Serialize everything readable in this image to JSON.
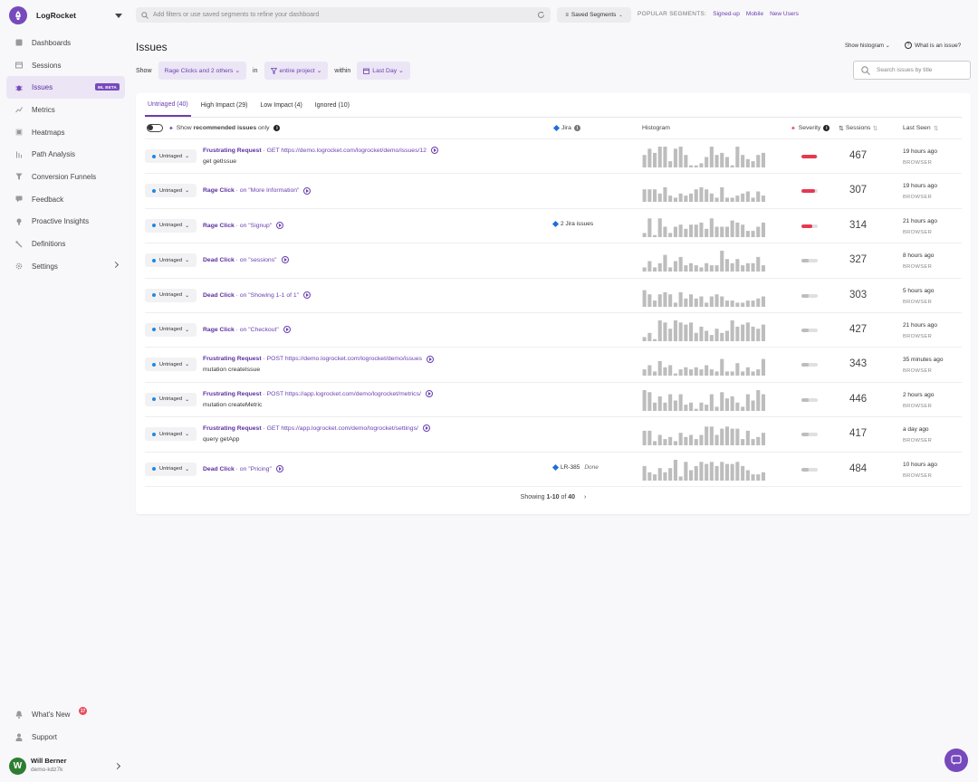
{
  "app": {
    "name": "LogRocket"
  },
  "sidebar": {
    "items": [
      {
        "label": "Dashboards",
        "icon": "dashboard-icon"
      },
      {
        "label": "Sessions",
        "icon": "sessions-icon"
      },
      {
        "label": "Issues",
        "icon": "bug-icon",
        "badge": "ML BETA"
      },
      {
        "label": "Metrics",
        "icon": "metrics-icon"
      },
      {
        "label": "Heatmaps",
        "icon": "heatmap-icon"
      },
      {
        "label": "Path Analysis",
        "icon": "path-analysis-icon"
      },
      {
        "label": "Conversion Funnels",
        "icon": "funnel-icon"
      },
      {
        "label": "Feedback",
        "icon": "feedback-icon"
      },
      {
        "label": "Proactive Insights",
        "icon": "lightbulb-icon"
      },
      {
        "label": "Definitions",
        "icon": "definitions-icon"
      },
      {
        "label": "Settings",
        "icon": "gear-icon"
      }
    ],
    "whats_new": {
      "label": "What's New",
      "count": "17"
    },
    "support": "Support",
    "user": {
      "initial": "W",
      "name": "Will Berner",
      "org": "demo-kdz7k"
    }
  },
  "topbar": {
    "filter_placeholder": "Add filters or use saved segments to refine your dashboard",
    "saved_segments": "Saved Segments",
    "popular_label": "POPULAR SEGMENTS:",
    "popular": [
      "Signed-up",
      "Mobile",
      "New Users"
    ]
  },
  "header": {
    "title": "Issues",
    "show_histogram": "Show histogram",
    "what_is_issue": "What is an issue?",
    "show": "Show",
    "filter_type": "Rage Clicks and 2 others",
    "in": "in",
    "project": "entire project",
    "within": "within",
    "range": "Last Day",
    "search_placeholder": "Search issues by title"
  },
  "tabs": [
    "Untriaged (40)",
    "High Impact (29)",
    "Low Impact (4)",
    "Ignored (10)"
  ],
  "table": {
    "show_prefix": "Show",
    "recommended": "recommended issues",
    "only": "only",
    "jira": "Jira",
    "histogram": "Histogram",
    "severity": "Severity",
    "sessions": "Sessions",
    "last_seen": "Last Seen"
  },
  "rows": [
    {
      "status": "Untriaged",
      "type": "Frustrating Request",
      "detail": "· GET https://demo.logrocket.com/logrocket/demo/issues/12",
      "sub": "get getIssue",
      "jira": "",
      "jira_done": "",
      "severity": 0.95,
      "sessions": "467",
      "last_seen": "19 hours ago",
      "platform": "BROWSER",
      "hist": [
        6,
        9,
        7,
        10,
        10,
        3,
        9,
        10,
        6,
        1,
        1,
        2,
        5,
        10,
        6,
        7,
        5,
        1,
        10,
        6,
        4,
        3,
        6,
        7
      ]
    },
    {
      "status": "Untriaged",
      "type": "Rage Click",
      "detail": "· on \"More Information\"",
      "sub": "",
      "jira": "",
      "jira_done": "",
      "severity": 0.85,
      "sessions": "307",
      "last_seen": "19 hours ago",
      "platform": "BROWSER",
      "hist": [
        6,
        6,
        6,
        4,
        7,
        3,
        2,
        4,
        3,
        4,
        6,
        7,
        6,
        4,
        2,
        7,
        2,
        2,
        3,
        4,
        5,
        2,
        5,
        3
      ]
    },
    {
      "status": "Untriaged",
      "type": "Rage Click",
      "detail": "· on \"Signup\"",
      "sub": "",
      "jira": "2 Jira issues",
      "jira_done": "",
      "severity": 0.65,
      "sessions": "314",
      "last_seen": "21 hours ago",
      "platform": "BROWSER",
      "hist": [
        2,
        9,
        1,
        9,
        5,
        2,
        5,
        6,
        4,
        6,
        6,
        7,
        4,
        9,
        5,
        5,
        5,
        8,
        7,
        6,
        3,
        3,
        5,
        7
      ]
    },
    {
      "status": "Untriaged",
      "type": "Dead Click",
      "detail": "· on \"sessions\"",
      "sub": "",
      "jira": "",
      "jira_done": "",
      "severity": 0.45,
      "sessions": "327",
      "last_seen": "8 hours ago",
      "platform": "BROWSER",
      "hist": [
        2,
        5,
        2,
        4,
        8,
        2,
        5,
        7,
        3,
        4,
        3,
        2,
        4,
        3,
        3,
        10,
        6,
        4,
        6,
        3,
        4,
        4,
        7,
        3
      ]
    },
    {
      "status": "Untriaged",
      "type": "Dead Click",
      "detail": "· on \"Showing 1-1 of 1\"",
      "sub": "",
      "jira": "",
      "jira_done": "",
      "severity": 0.45,
      "sessions": "303",
      "last_seen": "5 hours ago",
      "platform": "BROWSER",
      "hist": [
        8,
        6,
        3,
        6,
        7,
        6,
        2,
        7,
        4,
        6,
        4,
        5,
        2,
        5,
        6,
        5,
        3,
        3,
        2,
        2,
        3,
        3,
        4,
        5
      ]
    },
    {
      "status": "Untriaged",
      "type": "Rage Click",
      "detail": "· on \"Checkout\"",
      "sub": "",
      "jira": "",
      "jira_done": "",
      "severity": 0.45,
      "sessions": "427",
      "last_seen": "21 hours ago",
      "platform": "BROWSER",
      "hist": [
        2,
        4,
        1,
        10,
        9,
        6,
        10,
        9,
        8,
        9,
        4,
        7,
        5,
        3,
        6,
        4,
        5,
        10,
        7,
        8,
        9,
        7,
        6,
        8
      ]
    },
    {
      "status": "Untriaged",
      "type": "Frustrating Request",
      "detail": "· POST https://demo.logrocket.com/logrocket/demo/issues",
      "sub": "mutation createIssue",
      "jira": "",
      "jira_done": "",
      "severity": 0.45,
      "sessions": "343",
      "last_seen": "35 minutes ago",
      "platform": "BROWSER",
      "hist": [
        3,
        5,
        2,
        7,
        4,
        5,
        1,
        3,
        4,
        3,
        4,
        3,
        5,
        3,
        2,
        8,
        2,
        2,
        6,
        2,
        4,
        2,
        3,
        8
      ]
    },
    {
      "status": "Untriaged",
      "type": "Frustrating Request",
      "detail": "· POST https://app.logrocket.com/demo/logrocket/metrics/",
      "sub": "mutation createMetric",
      "jira": "",
      "jira_done": "",
      "severity": 0.45,
      "sessions": "446",
      "last_seen": "2 hours ago",
      "platform": "BROWSER",
      "hist": [
        10,
        9,
        4,
        7,
        4,
        8,
        5,
        8,
        3,
        4,
        1,
        4,
        3,
        8,
        2,
        9,
        6,
        7,
        4,
        2,
        8,
        5,
        10,
        8
      ]
    },
    {
      "status": "Untriaged",
      "type": "Frustrating Request",
      "detail": "· GET https://app.logrocket.com/demo/logrocket/settings/",
      "sub": "query getApp",
      "jira": "",
      "jira_done": "",
      "severity": 0.45,
      "sessions": "417",
      "last_seen": "a day ago",
      "platform": "BROWSER",
      "hist": [
        7,
        7,
        2,
        5,
        3,
        4,
        2,
        6,
        4,
        5,
        3,
        5,
        9,
        9,
        5,
        8,
        9,
        8,
        8,
        3,
        7,
        3,
        4,
        6
      ]
    },
    {
      "status": "Untriaged",
      "type": "Dead Click",
      "detail": "· on \"Pricing\"",
      "sub": "",
      "jira": "LR-385",
      "jira_done": "Done",
      "severity": 0.45,
      "sessions": "484",
      "last_seen": "10 hours ago",
      "platform": "BROWSER",
      "hist": [
        7,
        4,
        3,
        6,
        4,
        6,
        10,
        2,
        9,
        5,
        7,
        9,
        8,
        9,
        7,
        9,
        8,
        8,
        9,
        7,
        5,
        3,
        3,
        4
      ]
    }
  ],
  "pager": {
    "prefix": "Showing",
    "range": "1-10",
    "of": "of",
    "total": "40"
  },
  "colors": {
    "accent": "#764abc",
    "link": "#6a3fb0",
    "severity_high": "#e53950",
    "severity_low": "#bdbdbd",
    "histogram_bar": "#bdbdbd"
  }
}
